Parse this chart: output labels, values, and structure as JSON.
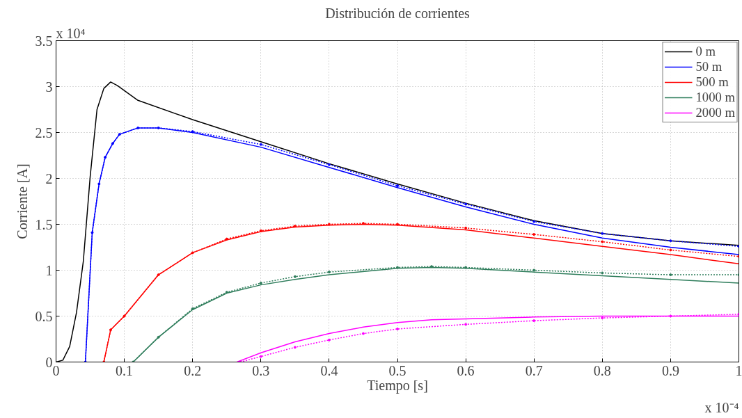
{
  "chart_data": {
    "type": "line",
    "title": "Distribución de corrientes",
    "xlabel": "Tiempo [s]",
    "ylabel": "Corriente [A]",
    "annotations": [
      "x 10⁴",
      "x 10⁻⁴"
    ],
    "xlim": [
      0,
      1
    ],
    "ylim": [
      0,
      3.5
    ],
    "xticks": [
      0,
      0.1,
      0.2,
      0.3,
      0.4,
      0.5,
      0.6,
      0.7,
      0.8,
      0.9,
      1
    ],
    "yticks": [
      0,
      0.5,
      1,
      1.5,
      2,
      2.5,
      3,
      3.5
    ],
    "grid": true,
    "legend": "top right",
    "line_style": "solid",
    "marker": "none",
    "series": [
      {
        "name": "0 m",
        "color": "#000000",
        "x": [
          0,
          0.01,
          0.02,
          0.03,
          0.04,
          0.05,
          0.06,
          0.07,
          0.08,
          0.09,
          0.12,
          0.2,
          0.3,
          0.4,
          0.5,
          0.6,
          0.7,
          0.8,
          0.9,
          1.0
        ],
        "values": [
          0,
          0.02,
          0.17,
          0.54,
          1.1,
          2.02,
          2.75,
          2.98,
          3.05,
          3.01,
          2.85,
          2.64,
          2.4,
          2.16,
          1.94,
          1.73,
          1.54,
          1.4,
          1.32,
          1.27
        ]
      },
      {
        "name": "50 m",
        "color": "#0000ff",
        "x": [
          0.043,
          0.053,
          0.063,
          0.072,
          0.083,
          0.093,
          0.12,
          0.15,
          0.2,
          0.3,
          0.4,
          0.5,
          0.6,
          0.7,
          0.8,
          0.9,
          1.0
        ],
        "values": [
          0,
          1.41,
          1.94,
          2.23,
          2.38,
          2.48,
          2.55,
          2.55,
          2.5,
          2.34,
          2.12,
          1.9,
          1.69,
          1.5,
          1.35,
          1.25,
          1.17
        ]
      },
      {
        "color": "#0000ff",
        "line_style": "dotted",
        "marker": "circle",
        "x": [
          0.043,
          0.053,
          0.063,
          0.072,
          0.083,
          0.093,
          0.12,
          0.15,
          0.2,
          0.3,
          0.4,
          0.5,
          0.6,
          0.7,
          0.8,
          0.9,
          1.0
        ],
        "values": [
          0,
          1.41,
          1.94,
          2.23,
          2.38,
          2.48,
          2.55,
          2.55,
          2.51,
          2.37,
          2.15,
          1.92,
          1.72,
          1.53,
          1.4,
          1.32,
          1.26
        ]
      },
      {
        "name": "500 m",
        "color": "#ff0000",
        "x": [
          0.07,
          0.08,
          0.1,
          0.15,
          0.2,
          0.25,
          0.3,
          0.35,
          0.4,
          0.45,
          0.5,
          0.6,
          0.7,
          0.8,
          0.9,
          1.0
        ],
        "values": [
          0,
          0.35,
          0.5,
          0.95,
          1.19,
          1.33,
          1.42,
          1.47,
          1.49,
          1.5,
          1.49,
          1.44,
          1.35,
          1.26,
          1.17,
          1.07
        ]
      },
      {
        "color": "#ff0000",
        "line_style": "dotted",
        "marker": "circle",
        "x": [
          0.07,
          0.08,
          0.1,
          0.15,
          0.2,
          0.25,
          0.3,
          0.35,
          0.4,
          0.45,
          0.5,
          0.6,
          0.7,
          0.8,
          0.9,
          1.0
        ],
        "values": [
          0,
          0.35,
          0.5,
          0.95,
          1.19,
          1.34,
          1.43,
          1.48,
          1.5,
          1.51,
          1.5,
          1.46,
          1.39,
          1.31,
          1.22,
          1.15
        ]
      },
      {
        "name": "1000 m",
        "color": "#2e7d5b",
        "x": [
          0.113,
          0.15,
          0.2,
          0.25,
          0.3,
          0.35,
          0.4,
          0.5,
          0.55,
          0.6,
          0.7,
          0.8,
          0.9,
          1.0
        ],
        "values": [
          0,
          0.27,
          0.57,
          0.75,
          0.84,
          0.9,
          0.95,
          1.02,
          1.03,
          1.02,
          0.98,
          0.94,
          0.9,
          0.86
        ]
      },
      {
        "color": "#2e7d5b",
        "line_style": "dotted",
        "marker": "circle",
        "x": [
          0.113,
          0.15,
          0.2,
          0.25,
          0.3,
          0.35,
          0.4,
          0.5,
          0.55,
          0.6,
          0.7,
          0.8,
          0.9,
          1.0
        ],
        "values": [
          0,
          0.27,
          0.58,
          0.76,
          0.86,
          0.93,
          0.98,
          1.03,
          1.04,
          1.03,
          1.0,
          0.97,
          0.95,
          0.95
        ]
      },
      {
        "name": "2000 m",
        "color": "#ff00ff",
        "x": [
          0.265,
          0.3,
          0.35,
          0.4,
          0.45,
          0.5,
          0.55,
          0.6,
          0.7,
          0.8,
          0.9,
          1.0
        ],
        "values": [
          0,
          0.1,
          0.22,
          0.31,
          0.38,
          0.43,
          0.46,
          0.47,
          0.49,
          0.5,
          0.5,
          0.5
        ]
      },
      {
        "color": "#ff00ff",
        "line_style": "dotted",
        "marker": "circle",
        "x": [
          0.27,
          0.3,
          0.35,
          0.4,
          0.45,
          0.5,
          0.6,
          0.7,
          0.8,
          0.9,
          1.0
        ],
        "values": [
          0,
          0.06,
          0.16,
          0.24,
          0.31,
          0.36,
          0.41,
          0.45,
          0.48,
          0.5,
          0.52
        ]
      }
    ]
  }
}
